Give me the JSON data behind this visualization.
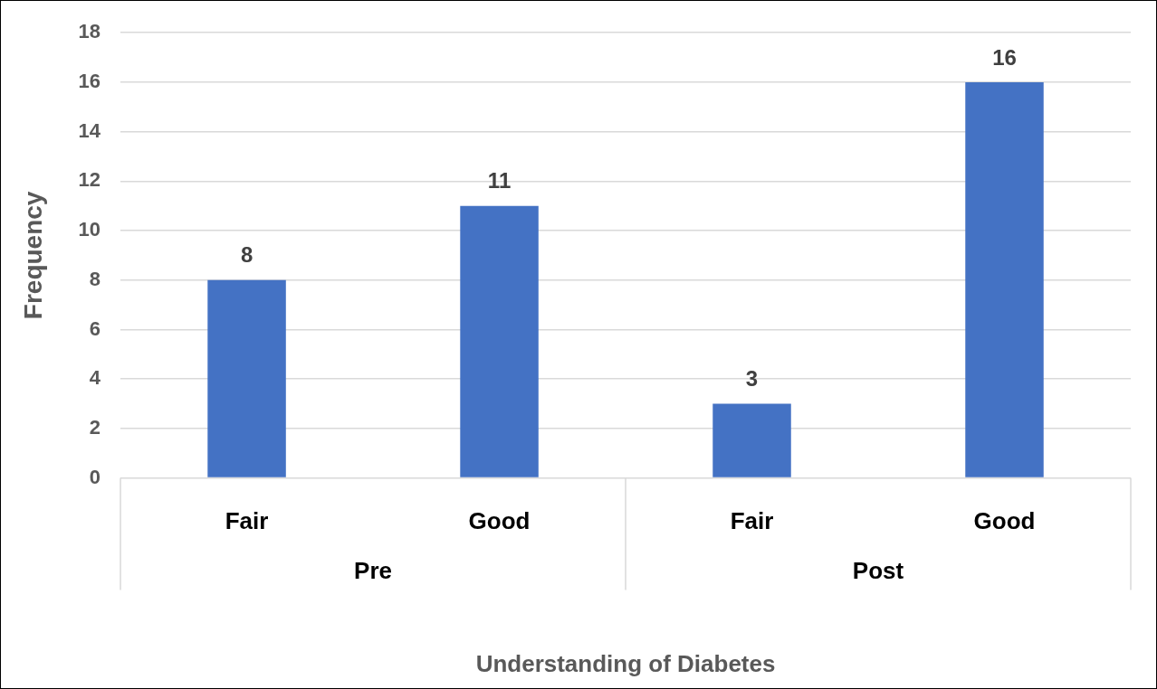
{
  "chart_data": {
    "type": "bar",
    "xlabel": "Understanding of Diabetes",
    "ylabel": "Frequency",
    "categories": [
      "Fair",
      "Good",
      "Fair",
      "Good"
    ],
    "values": [
      8,
      11,
      3,
      16
    ],
    "color": "#4472c4",
    "data_labels": true,
    "ylim": [
      0,
      18
    ],
    "yticks": [
      0,
      2,
      4,
      6,
      8,
      10,
      12,
      14,
      16,
      18
    ],
    "grid": "y",
    "legend": false,
    "annotations": [
      "Pre",
      "Post"
    ]
  }
}
